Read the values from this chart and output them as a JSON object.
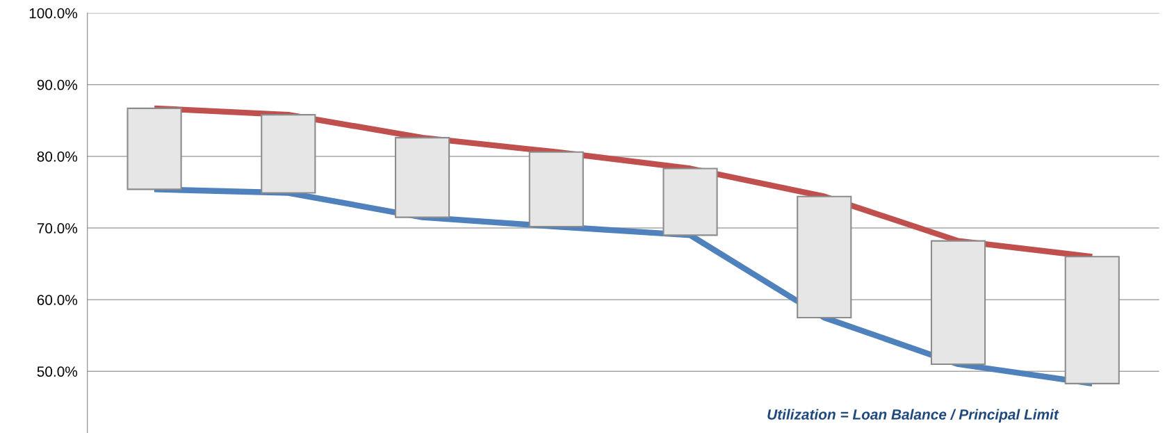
{
  "chart_data": {
    "type": "line",
    "categories": [
      null,
      null,
      null,
      null,
      null,
      null,
      null,
      null
    ],
    "series": [
      {
        "type": "bar",
        "color": "#e6e6e6",
        "base": [
          75.4,
          74.9,
          71.5,
          70.2,
          69.0,
          57.5,
          51.0,
          48.3
        ],
        "values": [
          11.3,
          10.9,
          11.1,
          10.4,
          9.3,
          16.9,
          17.2,
          17.7
        ]
      },
      {
        "color": "#c0504d",
        "values": [
          86.7,
          85.8,
          82.6,
          80.6,
          78.3,
          74.4,
          68.2,
          66.0
        ]
      },
      {
        "color": "#4f81bd",
        "values": [
          75.4,
          74.9,
          71.5,
          70.2,
          69.0,
          57.5,
          51.0,
          48.3
        ]
      }
    ],
    "ylim": [
      41.4,
      100
    ],
    "yticks": [
      {
        "value": 50,
        "label": "50.0%"
      },
      {
        "value": 60,
        "label": "60.0%"
      },
      {
        "value": 70,
        "label": "70.0%"
      },
      {
        "value": 80,
        "label": "80.0%"
      },
      {
        "value": 90,
        "label": "90.0%"
      },
      {
        "value": 100,
        "label": "100.0%"
      }
    ],
    "grid": "y",
    "legend": false,
    "marker": "none",
    "line_style": "solid",
    "annotations": [
      "Utilization = Loan Balance / Principal Limit"
    ]
  }
}
